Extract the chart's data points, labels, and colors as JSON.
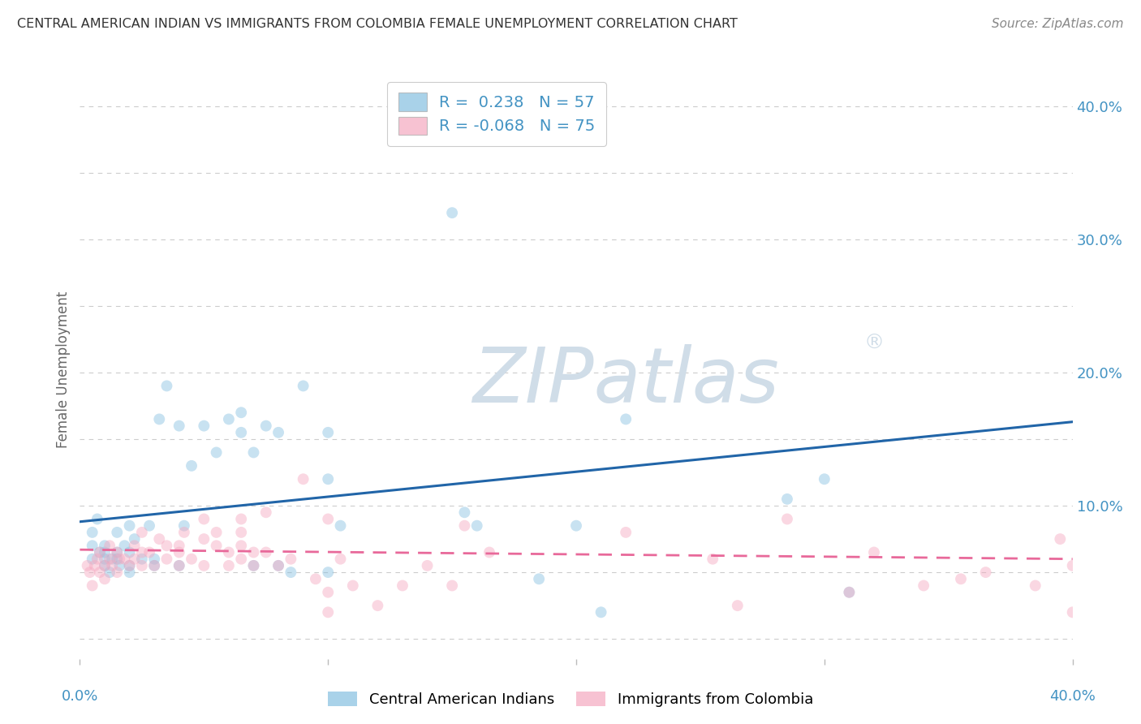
{
  "title": "CENTRAL AMERICAN INDIAN VS IMMIGRANTS FROM COLOMBIA FEMALE UNEMPLOYMENT CORRELATION CHART",
  "source": "Source: ZipAtlas.com",
  "ylabel": "Female Unemployment",
  "xlim": [
    0.0,
    0.4
  ],
  "ylim": [
    -0.015,
    0.42
  ],
  "yticks": [
    0.0,
    0.1,
    0.2,
    0.3,
    0.4
  ],
  "ytick_labels": [
    "",
    "10.0%",
    "20.0%",
    "30.0%",
    "40.0%"
  ],
  "watermark": "ZIPatlas",
  "watermark_symbol": "®",
  "legend_line1": "R =  0.238   N = 57",
  "legend_line2": "R = -0.068   N = 75",
  "color_blue": "#85bfe0",
  "color_pink": "#f5a8bf",
  "color_blue_line": "#2165a8",
  "color_pink_line": "#e8699a",
  "color_blue_text": "#4393c3",
  "color_title": "#333333",
  "color_source": "#888888",
  "background_color": "#ffffff",
  "grid_color": "#cccccc",
  "blue_scatter_x": [
    0.005,
    0.005,
    0.005,
    0.007,
    0.008,
    0.01,
    0.01,
    0.01,
    0.01,
    0.012,
    0.013,
    0.015,
    0.015,
    0.015,
    0.016,
    0.018,
    0.02,
    0.02,
    0.02,
    0.02,
    0.022,
    0.025,
    0.028,
    0.03,
    0.03,
    0.032,
    0.035,
    0.04,
    0.04,
    0.042,
    0.045,
    0.05,
    0.055,
    0.06,
    0.065,
    0.065,
    0.07,
    0.07,
    0.075,
    0.08,
    0.08,
    0.085,
    0.09,
    0.1,
    0.1,
    0.1,
    0.105,
    0.15,
    0.155,
    0.16,
    0.185,
    0.2,
    0.21,
    0.22,
    0.285,
    0.3,
    0.31
  ],
  "blue_scatter_y": [
    0.08,
    0.07,
    0.06,
    0.09,
    0.065,
    0.055,
    0.06,
    0.07,
    0.065,
    0.05,
    0.06,
    0.08,
    0.065,
    0.06,
    0.055,
    0.07,
    0.065,
    0.055,
    0.05,
    0.085,
    0.075,
    0.06,
    0.085,
    0.06,
    0.055,
    0.165,
    0.19,
    0.055,
    0.16,
    0.085,
    0.13,
    0.16,
    0.14,
    0.165,
    0.155,
    0.17,
    0.055,
    0.14,
    0.16,
    0.055,
    0.155,
    0.05,
    0.19,
    0.12,
    0.155,
    0.05,
    0.085,
    0.32,
    0.095,
    0.085,
    0.045,
    0.085,
    0.02,
    0.165,
    0.105,
    0.12,
    0.035
  ],
  "pink_scatter_x": [
    0.003,
    0.004,
    0.005,
    0.006,
    0.007,
    0.008,
    0.008,
    0.01,
    0.01,
    0.012,
    0.012,
    0.013,
    0.015,
    0.015,
    0.016,
    0.018,
    0.02,
    0.022,
    0.022,
    0.025,
    0.025,
    0.025,
    0.028,
    0.03,
    0.032,
    0.035,
    0.035,
    0.04,
    0.04,
    0.04,
    0.042,
    0.045,
    0.05,
    0.05,
    0.05,
    0.055,
    0.055,
    0.06,
    0.06,
    0.065,
    0.065,
    0.065,
    0.065,
    0.07,
    0.07,
    0.075,
    0.075,
    0.08,
    0.085,
    0.09,
    0.095,
    0.1,
    0.1,
    0.1,
    0.105,
    0.11,
    0.12,
    0.13,
    0.14,
    0.15,
    0.155,
    0.165,
    0.22,
    0.255,
    0.265,
    0.285,
    0.31,
    0.32,
    0.34,
    0.355,
    0.365,
    0.385,
    0.395,
    0.4,
    0.4
  ],
  "pink_scatter_y": [
    0.055,
    0.05,
    0.04,
    0.055,
    0.06,
    0.05,
    0.065,
    0.045,
    0.055,
    0.06,
    0.07,
    0.055,
    0.05,
    0.065,
    0.06,
    0.06,
    0.055,
    0.07,
    0.06,
    0.055,
    0.065,
    0.08,
    0.065,
    0.055,
    0.075,
    0.06,
    0.07,
    0.055,
    0.065,
    0.07,
    0.08,
    0.06,
    0.075,
    0.055,
    0.09,
    0.07,
    0.08,
    0.055,
    0.065,
    0.06,
    0.07,
    0.08,
    0.09,
    0.065,
    0.055,
    0.065,
    0.095,
    0.055,
    0.06,
    0.12,
    0.045,
    0.09,
    0.035,
    0.02,
    0.06,
    0.04,
    0.025,
    0.04,
    0.055,
    0.04,
    0.085,
    0.065,
    0.08,
    0.06,
    0.025,
    0.09,
    0.035,
    0.065,
    0.04,
    0.045,
    0.05,
    0.04,
    0.075,
    0.055,
    0.02
  ],
  "blue_line_x": [
    0.0,
    0.4
  ],
  "blue_line_y": [
    0.088,
    0.163
  ],
  "pink_line_x": [
    0.0,
    0.4
  ],
  "pink_line_y": [
    0.067,
    0.06
  ],
  "scatter_size": 100,
  "scatter_alpha": 0.45,
  "legend_label_blue": "Central American Indians",
  "legend_label_pink": "Immigrants from Colombia"
}
